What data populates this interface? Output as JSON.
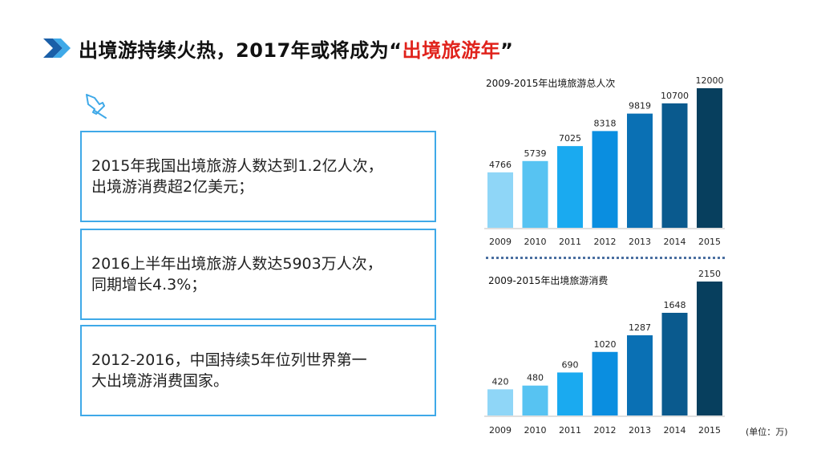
{
  "header": {
    "title_main": "出境游持续火热，2017年或将成为",
    "title_quote_open": "“",
    "title_highlight": "出境旅游年",
    "title_quote_close": "”",
    "chevron_icon": "double-chevron-right-icon",
    "accent_color": "#1a5fa8",
    "highlight_color": "#e0231c"
  },
  "pin_icon": "pushpin-icon",
  "facts": [
    "2015年我国出境旅游人数达到1.2亿人次，\n出境游消费超2亿美元；",
    "2016上半年出境旅游人数达5903万人次，\n同期增长4.3%；",
    "2012-2016，中国持续5年位列世界第一\n大出境游消费国家。"
  ],
  "unit_note": "(单位：万)",
  "chart_data": [
    {
      "type": "bar",
      "title": "2009-2015年出境旅游总人次",
      "categories": [
        "2009",
        "2010",
        "2011",
        "2012",
        "2013",
        "2014",
        "2015"
      ],
      "values": [
        4766,
        5739,
        7025,
        8318,
        9819,
        10700,
        12000
      ],
      "ylim": [
        0,
        12000
      ],
      "grid": false,
      "colors": [
        "#8fd6f7",
        "#57c3f2",
        "#1aaaf0",
        "#0a8ee0",
        "#0a70b4",
        "#0a5a8e",
        "#073f5e"
      ]
    },
    {
      "type": "bar",
      "title": "2009-2015年出境旅游消费",
      "categories": [
        "2009",
        "2010",
        "2011",
        "2012",
        "2013",
        "2014",
        "2015"
      ],
      "values": [
        420,
        480,
        690,
        1020,
        1287,
        1648,
        2150
      ],
      "ylim": [
        0,
        2150
      ],
      "grid": false,
      "colors": [
        "#8fd6f7",
        "#57c3f2",
        "#1aaaf0",
        "#0a8ee0",
        "#0a70b4",
        "#0a5a8e",
        "#073f5e"
      ]
    }
  ]
}
